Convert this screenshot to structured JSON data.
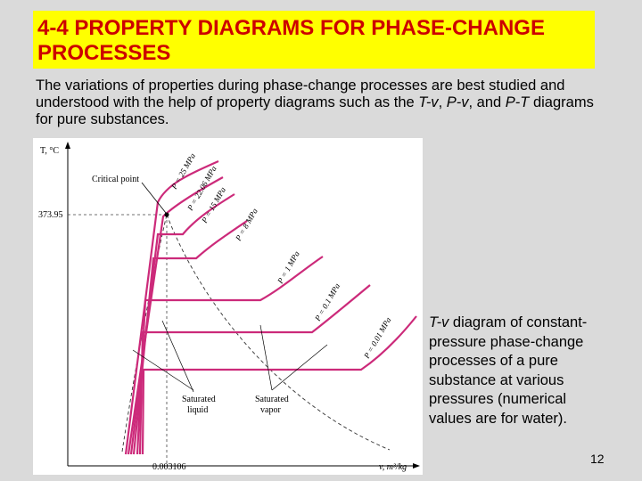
{
  "slide": {
    "title": "4-4 PROPERTY DIAGRAMS FOR PHASE-CHANGE PROCESSES",
    "intro": {
      "part1": "The variations of properties during phase-change processes are best studied and understood with the help of property diagrams such as the ",
      "tv": "T-v",
      "sep1": ", ",
      "pv": "P-v",
      "sep2": ", and ",
      "pt": "P-T",
      "part2": " diagrams for pure substances."
    },
    "caption": {
      "italic": "T-v",
      "rest": " diagram of constant-pressure phase-change processes of a pure substance at various pressures (numerical values are for water)."
    },
    "page_number": "12"
  },
  "diagram": {
    "y_axis_label": "T, °C",
    "x_axis_label": "v, m³/kg",
    "critical_temperature": "373.95",
    "critical_volume": "0.003106",
    "critical_point_label": "Critical point",
    "saturated_liquid_label": [
      "Saturated",
      "liquid"
    ],
    "saturated_vapor_label": [
      "Saturated",
      "vapor"
    ],
    "isobars": [
      "P = 25 MPa",
      "P = 22.06 MPa",
      "P = 15 MPa",
      "P = 8 MPa",
      "P = 1 MPa",
      "P = 0.1 MPa",
      "P = 0.01 MPa"
    ],
    "colors": {
      "title_bg": "#ffff00",
      "title_text": "#cc0000",
      "isobar": "#cc2a7a"
    }
  }
}
